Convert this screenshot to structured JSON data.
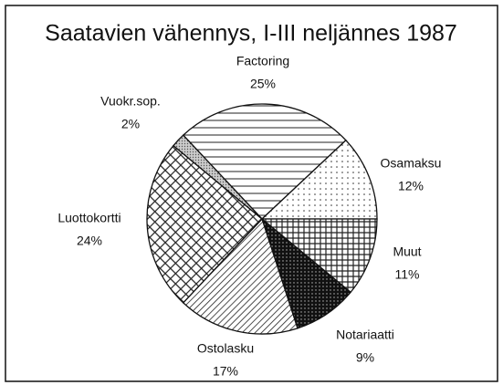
{
  "chart_data": {
    "type": "pie",
    "title": "Saatavien vähennys, I-III neljännes 1987",
    "categories": [
      "Factoring",
      "Osamaksu",
      "Muut",
      "Notariaatti",
      "Ostolasku",
      "Luottokortti",
      "Vuokr.sop."
    ],
    "values": [
      25,
      12,
      11,
      9,
      17,
      24,
      2
    ],
    "value_labels": [
      "25%",
      "12%",
      "11%",
      "9%",
      "17%",
      "24%",
      "2%"
    ]
  }
}
